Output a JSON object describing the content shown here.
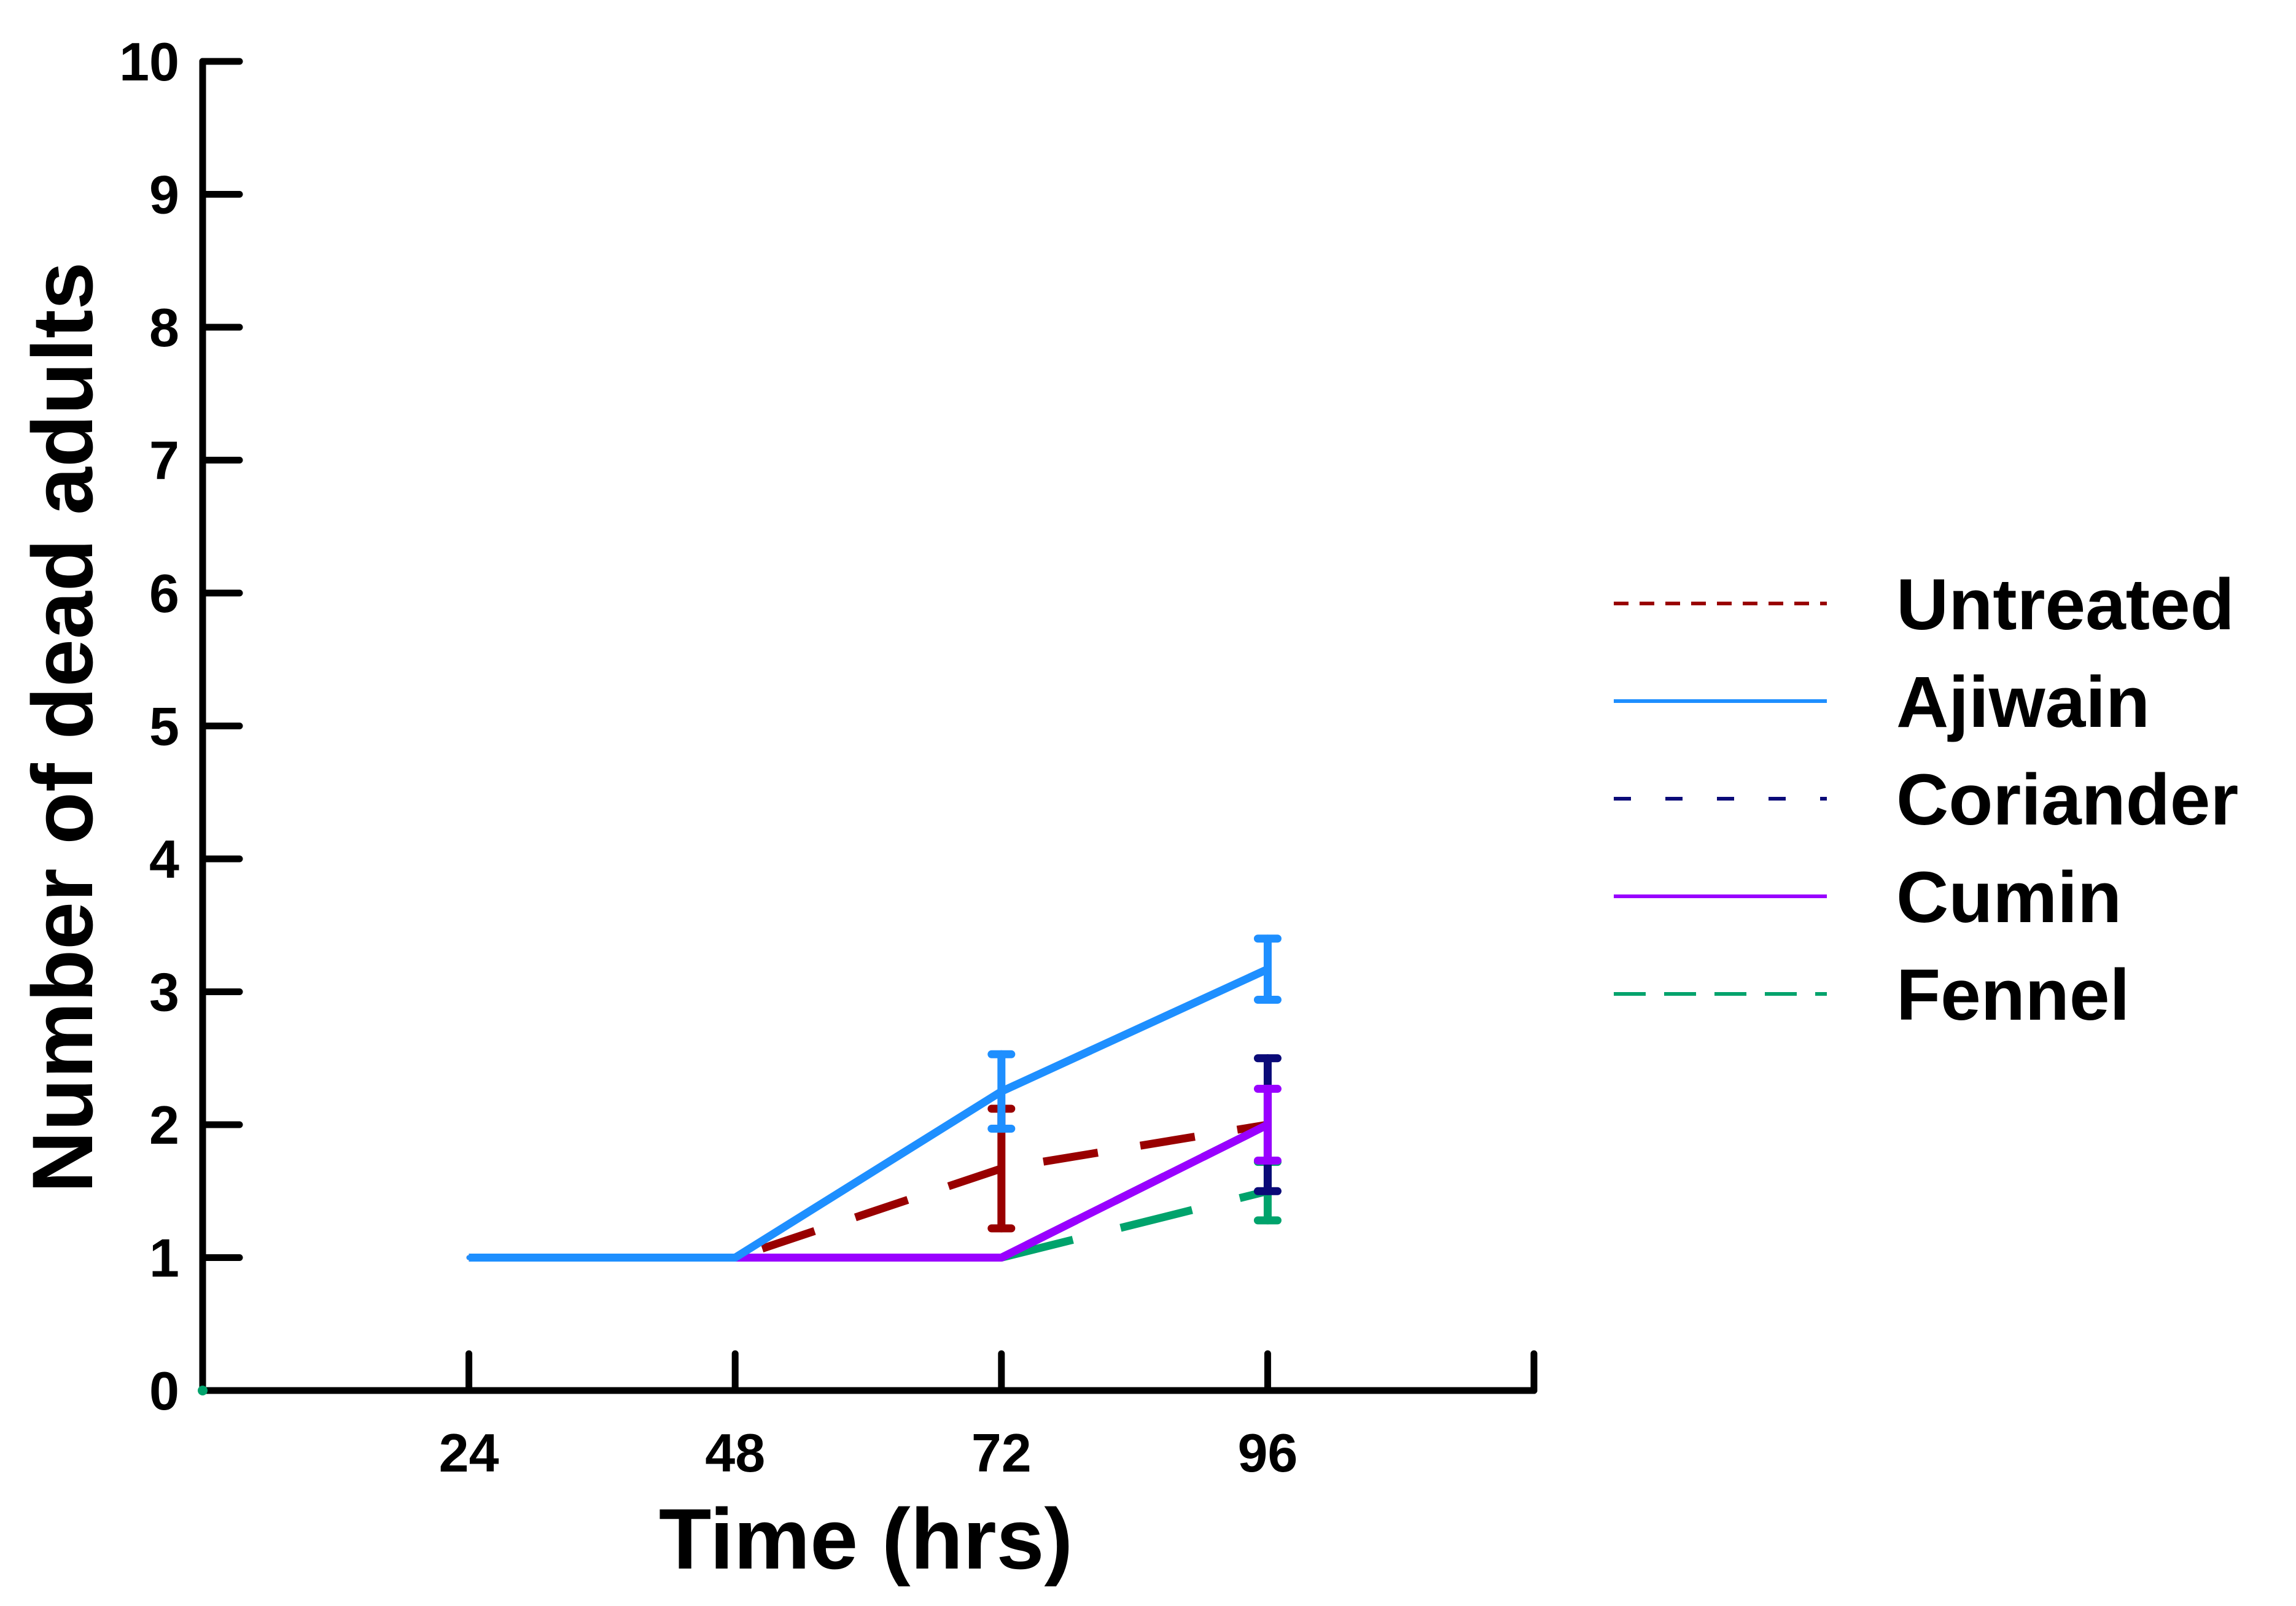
{
  "chart_data": {
    "type": "line",
    "title": "",
    "xlabel": "Time (hrs)",
    "ylabel": "Number of dead adults",
    "x": [
      24,
      48,
      72,
      96
    ],
    "x_tick_labels": [
      "24",
      "48",
      "72",
      "96"
    ],
    "xlim": [
      0,
      120
    ],
    "ylim": [
      0,
      10
    ],
    "y_ticks": [
      0,
      1,
      2,
      3,
      4,
      5,
      6,
      7,
      8,
      9,
      10
    ],
    "y_tick_labels": [
      "0",
      "1",
      "2",
      "3",
      "4",
      "5",
      "6",
      "7",
      "8",
      "9",
      "10"
    ],
    "grid": false,
    "legend_position": "right",
    "series": [
      {
        "name": "Untreated",
        "color": "#990000",
        "dash": "dashed",
        "x": [
          24,
          48,
          72,
          96
        ],
        "values": [
          1,
          1,
          1.67,
          2
        ],
        "error": [
          0,
          0,
          0.45,
          0
        ]
      },
      {
        "name": "Ajiwain",
        "color": "#1e8fff",
        "dash": "solid",
        "x": [
          24,
          48,
          72,
          96
        ],
        "values": [
          1,
          1,
          2.25,
          3.17
        ],
        "error": [
          0,
          0,
          0.28,
          0.23
        ]
      },
      {
        "name": "Coriander",
        "color": "#0a0a78",
        "dash": "dashed",
        "x": [
          48,
          72,
          96
        ],
        "values": [
          1,
          1,
          2
        ],
        "error": [
          0,
          0,
          0.5
        ]
      },
      {
        "name": "Cumin",
        "color": "#9900ff",
        "dash": "solid",
        "x": [
          48,
          72,
          96
        ],
        "values": [
          1,
          1,
          2
        ],
        "error": [
          0,
          0,
          0.27
        ]
      },
      {
        "name": "Fennel",
        "color": "#00a36c",
        "dash": "dashed",
        "x": [
          72,
          96
        ],
        "values": [
          1,
          1.5
        ],
        "error": [
          0,
          0.22
        ]
      }
    ]
  }
}
